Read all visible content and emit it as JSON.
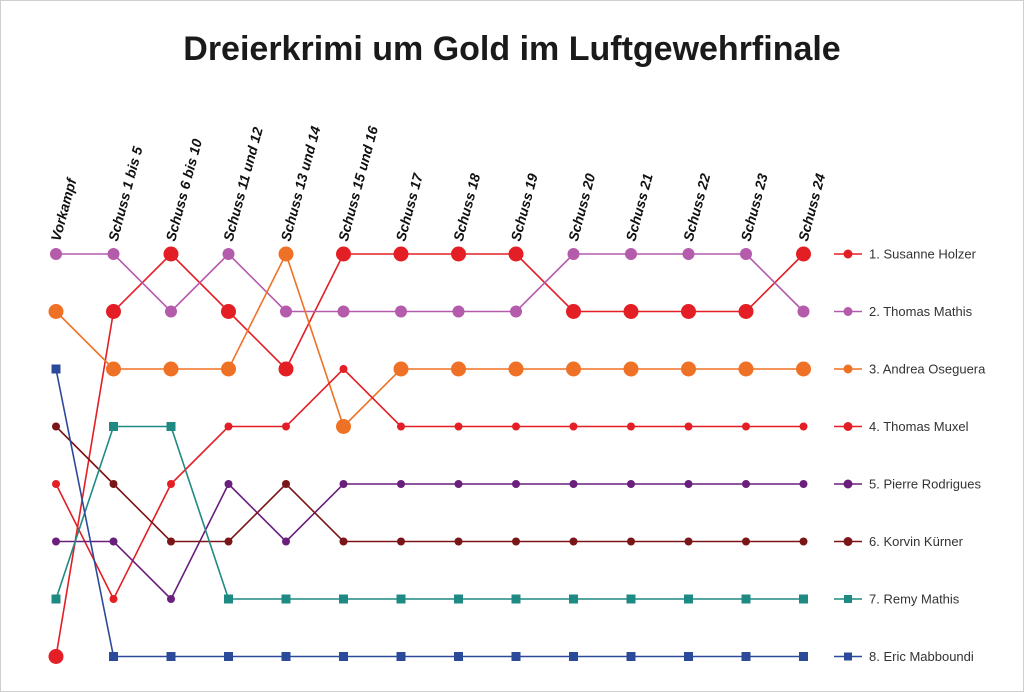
{
  "chart_data": {
    "type": "line",
    "title": "Dreierkrimi um Gold im Luftgewehrfinale",
    "xlabel": "",
    "ylabel": "",
    "categories": [
      "Vorkampf",
      "Schuss 1 bis 5",
      "Schuss 6 bis 10",
      "Schuss 11 und 12",
      "Schuss 13 und 14",
      "Schuss 15 und 16",
      "Schuss 17",
      "Schuss 18",
      "Schuss 19",
      "Schuss 20",
      "Schuss 21",
      "Schuss 22",
      "Schuss 23",
      "Schuss 24"
    ],
    "y_axis": "rank",
    "ylim": [
      8,
      1
    ],
    "grid": false,
    "legend_position": "right",
    "series": [
      {
        "name": "1. Susanne Holzer",
        "color": "#e31e24",
        "marker": "circle",
        "size": "large",
        "values": [
          8,
          2,
          1,
          2,
          3,
          1,
          1,
          1,
          1,
          2,
          2,
          2,
          2,
          1
        ]
      },
      {
        "name": "2. Thomas Mathis",
        "color": "#b55bab",
        "marker": "circle",
        "size": "medium",
        "values": [
          1,
          1,
          2,
          1,
          2,
          2,
          2,
          2,
          2,
          1,
          1,
          1,
          1,
          2
        ]
      },
      {
        "name": "3. Andrea Oseguera",
        "color": "#ef7125",
        "marker": "circle",
        "size": "large",
        "values": [
          2,
          3,
          3,
          3,
          1,
          4,
          3,
          3,
          3,
          3,
          3,
          3,
          3,
          3
        ]
      },
      {
        "name": "4. Thomas Muxel",
        "color": "#e31e24",
        "marker": "circle",
        "size": "small",
        "values": [
          5,
          7,
          5,
          4,
          4,
          3,
          4,
          4,
          4,
          4,
          4,
          4,
          4,
          4
        ]
      },
      {
        "name": "5. Pierre Rodrigues",
        "color": "#6a1f7d",
        "marker": "circle",
        "size": "small",
        "values": [
          6,
          6,
          7,
          5,
          6,
          5,
          5,
          5,
          5,
          5,
          5,
          5,
          5,
          5
        ]
      },
      {
        "name": "6. Korvin Kürner",
        "color": "#7a1518",
        "marker": "circle",
        "size": "small",
        "values": [
          4,
          5,
          6,
          6,
          5,
          6,
          6,
          6,
          6,
          6,
          6,
          6,
          6,
          6
        ]
      },
      {
        "name": "7. Remy Mathis",
        "color": "#1f8a84",
        "marker": "square",
        "size": "small",
        "values": [
          7,
          4,
          4,
          7,
          7,
          7,
          7,
          7,
          7,
          7,
          7,
          7,
          7,
          7
        ]
      },
      {
        "name": "8. Eric Mabboundi",
        "color": "#2c4a9a",
        "marker": "square",
        "size": "small",
        "values": [
          3,
          8,
          8,
          8,
          8,
          8,
          8,
          8,
          8,
          8,
          8,
          8,
          8,
          8
        ]
      }
    ]
  }
}
